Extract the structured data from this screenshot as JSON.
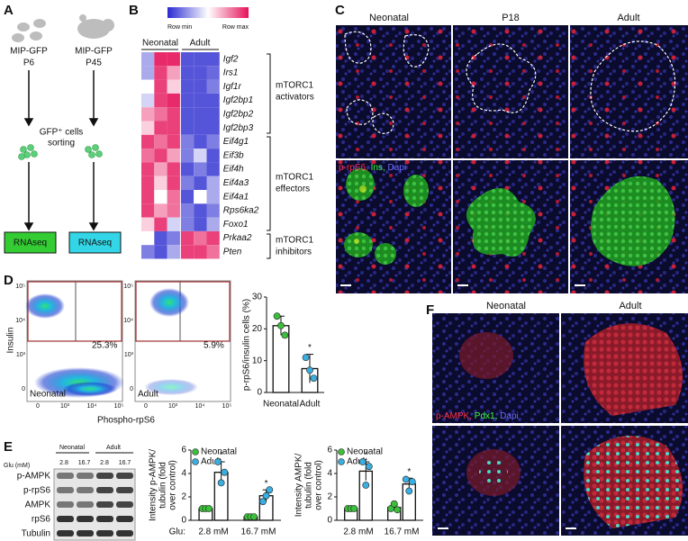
{
  "panel_a": {
    "label": "A",
    "mice": [
      {
        "line1": "MIP-GFP",
        "line2": "P6"
      },
      {
        "line1": "MIP-GFP",
        "line2": "P45"
      }
    ],
    "sorting": [
      "GFP⁺ cells",
      "sorting"
    ],
    "outputs": [
      "RNAseq",
      "RNAseq"
    ]
  },
  "panel_b": {
    "label": "B",
    "scale": [
      "Row min",
      "Row max"
    ],
    "groups": [
      "Neonatal",
      "Adult"
    ],
    "genes": [
      "Igf2",
      "Irs1",
      "Igf1r",
      "Igf2bp1",
      "Igf2bp2",
      "Igf2bp3",
      "Eif4g1",
      "Eif3b",
      "Eif4h",
      "Eif4a3",
      "Eif4a1",
      "Rps6ka2",
      "Foxo1",
      "Prkaa2",
      "Pten"
    ],
    "values": [
      [
        0.3,
        0.95,
        0.95,
        0.1,
        0.1,
        0.1
      ],
      [
        0.3,
        0.9,
        0.7,
        0.1,
        0.1,
        0.15
      ],
      [
        0.5,
        0.9,
        0.6,
        0.1,
        0.1,
        0.2
      ],
      [
        0.4,
        0.9,
        0.95,
        0.1,
        0.1,
        0.1
      ],
      [
        0.7,
        0.8,
        0.9,
        0.1,
        0.1,
        0.1
      ],
      [
        0.6,
        0.9,
        0.9,
        0.1,
        0.1,
        0.1
      ],
      [
        0.9,
        0.8,
        0.9,
        0.2,
        0.1,
        0.2
      ],
      [
        0.8,
        0.9,
        0.7,
        0.2,
        0.4,
        0.1
      ],
      [
        0.9,
        0.7,
        0.9,
        0.1,
        0.2,
        0.1
      ],
      [
        0.9,
        0.6,
        0.9,
        0.2,
        0.1,
        0.3
      ],
      [
        0.9,
        0.5,
        0.8,
        0.1,
        0.5,
        0.3
      ],
      [
        0.9,
        0.7,
        0.8,
        0.2,
        0.1,
        0.2
      ],
      [
        0.6,
        0.9,
        0.4,
        0.2,
        0.1,
        0.3
      ],
      [
        0.5,
        0.1,
        0.2,
        0.9,
        0.8,
        0.9
      ],
      [
        0.2,
        0.1,
        0.3,
        0.9,
        0.9,
        0.8
      ]
    ],
    "gene_sets": [
      [
        "mTORC1",
        "activators"
      ],
      [
        "mTORC1",
        "effectors"
      ],
      [
        "mTORC1",
        "inhibitors"
      ]
    ]
  },
  "panel_c": {
    "label": "C",
    "columns": [
      "Neonatal",
      "P18",
      "Adult"
    ],
    "stain": [
      "p-rpS6,",
      "Ins,",
      "Dapi"
    ]
  },
  "panel_d": {
    "label": "D",
    "gates": [
      "25.3%",
      "5.9%"
    ],
    "samples": [
      "Neonatal",
      "Adult"
    ],
    "xlabel": "Phospho-rpS6",
    "ylabel": "Insulin",
    "flow_yticks": [
      "10⁵",
      "10⁴",
      "10³",
      "0"
    ],
    "flow_xticks": [
      "0",
      "10³",
      "10⁴",
      "10⁵"
    ],
    "chart": {
      "type": "bar",
      "ylabel": "p-rpS6/insulin cells (%)",
      "categories": [
        "Neonatal",
        "Adult"
      ],
      "colors": [
        "#3cc03c",
        "#3aaee0"
      ],
      "values": [
        21,
        7.5
      ],
      "errors": [
        3,
        4.5
      ],
      "points": [
        [
          24,
          21,
          18
        ],
        [
          11,
          7,
          4.5
        ]
      ],
      "annotations": [
        null,
        "*"
      ],
      "ylim": [
        0,
        30
      ],
      "yticks": [
        0,
        10,
        20,
        30
      ]
    }
  },
  "panel_e": {
    "label": "E",
    "blot": {
      "glu_label": "Glu (mM)",
      "groups": [
        "Neonatal",
        "Adult"
      ],
      "lanes": [
        "2.8",
        "16.7",
        "2.8",
        "16.7"
      ],
      "rows": [
        "p-AMPK",
        "p-rpS6",
        "AMPK",
        "rpS6",
        "Tubulin"
      ]
    },
    "charts": [
      {
        "type": "bar",
        "ylabel_lines": [
          "Intensity p-AMPK/",
          "tubulin (fold",
          "over control)"
        ],
        "xprefix": "Glu:",
        "categories": [
          "2.8 mM",
          "16.7 mM"
        ],
        "ylim": [
          0,
          6
        ],
        "yticks": [
          0,
          2,
          4,
          6
        ],
        "series": [
          {
            "name": "Neonatal",
            "color": "#3cc03c",
            "values": [
              1,
              0.3
            ],
            "errors": [
              0,
              0.05
            ],
            "points": [
              [
                1,
                1,
                1
              ],
              [
                0.3,
                0.3,
                0.3
              ]
            ],
            "annotations": [
              null,
              null
            ]
          },
          {
            "name": "Adult",
            "color": "#3aaee0",
            "values": [
              4.1,
              2.1
            ],
            "errors": [
              0.9,
              0.5
            ],
            "points": [
              [
                5,
                3.2,
                4.1
              ],
              [
                1.6,
                2.1,
                2.6
              ]
            ],
            "annotations": [
              "*",
              "*"
            ]
          }
        ]
      },
      {
        "type": "bar",
        "ylabel_lines": [
          "Intensity AMPK/",
          "tubulin (fold",
          "over control)"
        ],
        "categories": [
          "2.8 mM",
          "16.7 mM"
        ],
        "ylim": [
          0,
          6
        ],
        "yticks": [
          0,
          2,
          4,
          6
        ],
        "series": [
          {
            "name": "Neonatal",
            "color": "#3cc03c",
            "values": [
              1,
              1.1
            ],
            "errors": [
              0,
              0.2
            ],
            "points": [
              [
                1,
                1,
                1
              ],
              [
                1,
                1.4,
                0.9
              ]
            ],
            "annotations": [
              null,
              null
            ]
          },
          {
            "name": "Adult",
            "color": "#3aaee0",
            "values": [
              4.2,
              3.1
            ],
            "errors": [
              0.8,
              0.5
            ],
            "points": [
              [
                5,
                3,
                4.6
              ],
              [
                3.5,
                2.5,
                3.3
              ]
            ],
            "annotations": [
              "*",
              "*"
            ]
          }
        ]
      }
    ]
  },
  "panel_f": {
    "label": "F",
    "columns": [
      "Neonatal",
      "Adult"
    ],
    "stain": [
      "p-AMPK,",
      "Pdx1,",
      "Dapi"
    ]
  }
}
